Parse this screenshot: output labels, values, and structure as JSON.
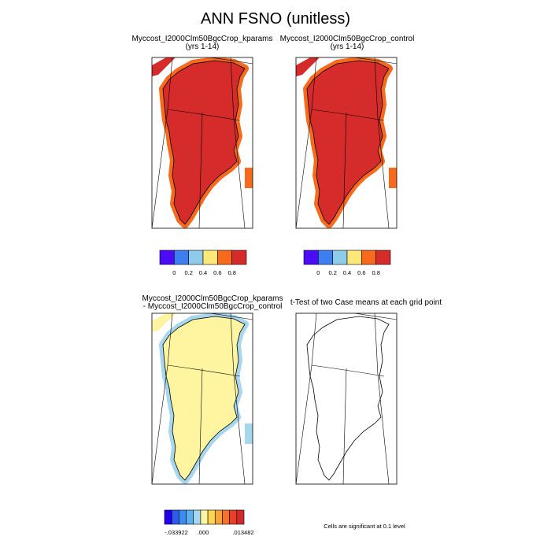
{
  "header": {
    "title": "ANN FSNO (unitless)"
  },
  "panels": [
    {
      "title": "Myccost_I2000Clm50BgcCrop_kparams",
      "subtitle": "(yrs 1-14)"
    },
    {
      "title": "Myccost_I2000Clm50BgcCrop_control",
      "subtitle": "(yrs 1-14)"
    },
    {
      "title": "Myccost_I2000Clm50BgcCrop_kparams",
      "subtitle": "- Myccost_I2000Clm50BgcCrop_control"
    },
    {
      "title": "t-Test of two Case means at each grid point"
    }
  ],
  "colorbars": [
    {
      "colors": [
        "#4b0cf5",
        "#3d7ff0",
        "#8ecbeb",
        "#fbe77a",
        "#f76a1c",
        "#d62b2b"
      ],
      "labels": [
        "0",
        "0.2",
        "0.4",
        "0.6",
        "0.8"
      ]
    },
    {
      "colors": [
        "#4b0cf5",
        "#3d7ff0",
        "#8ecbeb",
        "#fbe77a",
        "#f76a1c",
        "#d62b2b"
      ],
      "labels": [
        "0",
        "0.2",
        "0.4",
        "0.6",
        "0.8"
      ]
    },
    {
      "colors": [
        "#2200ee",
        "#2f5aee",
        "#3b8cf0",
        "#5ab0ee",
        "#a6d7ef",
        "#fff5a0",
        "#fbd550",
        "#f6a43a",
        "#f67228",
        "#e83f2a",
        "#d22a2a"
      ],
      "labels": [
        "-.033922",
        ".000",
        ".013482"
      ]
    }
  ],
  "footnote": "Cells are significant at 0.1 level"
}
